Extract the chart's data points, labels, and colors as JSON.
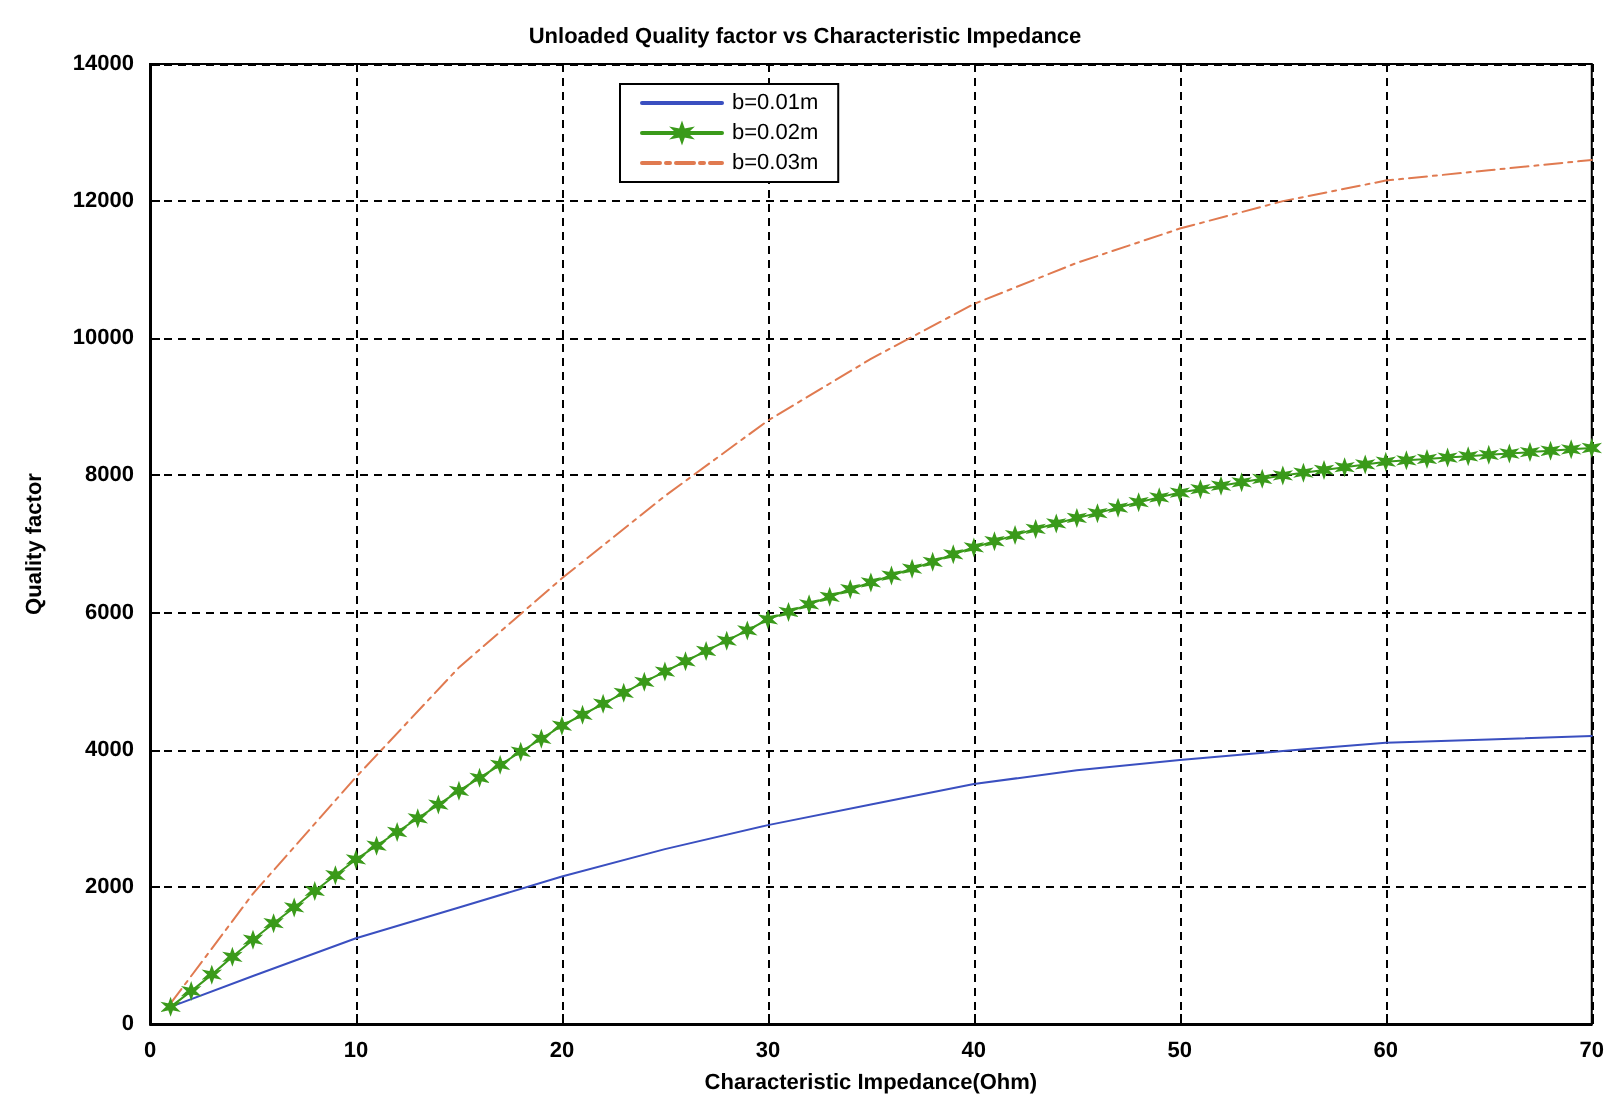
{
  "chart_data": {
    "type": "line",
    "title": "Unloaded Quality factor vs Characteristic Impedance",
    "xlabel": "Characteristic Impedance(Ohm)",
    "ylabel": "Quality factor",
    "xlim": [
      0,
      70
    ],
    "xticks": [
      0,
      10,
      20,
      30,
      40,
      50,
      60,
      70
    ],
    "ylim": [
      0,
      14000
    ],
    "yticks": [
      0,
      2000,
      4000,
      6000,
      8000,
      10000,
      12000,
      14000
    ],
    "grid": true,
    "legend": "top",
    "series": [
      {
        "name": "b=0.01m",
        "color": "#3a4fc0",
        "line_style": "solid",
        "x": [
          1,
          5,
          10,
          15,
          20,
          25,
          30,
          35,
          40,
          45,
          50,
          55,
          60,
          65,
          70
        ],
        "values": [
          250,
          700,
          1250,
          1700,
          2150,
          2550,
          2900,
          3200,
          3500,
          3700,
          3850,
          3980,
          4100,
          4150,
          4200
        ]
      },
      {
        "name": "b=0.02m",
        "color": "#3a9a1a",
        "line_style": "solid",
        "marker": "cross",
        "x": [
          1,
          2,
          3,
          4,
          5,
          6,
          7,
          8,
          9,
          10,
          11,
          12,
          13,
          14,
          15,
          16,
          17,
          18,
          19,
          20,
          21,
          22,
          23,
          24,
          25,
          26,
          27,
          28,
          29,
          30,
          31,
          32,
          33,
          34,
          35,
          36,
          37,
          38,
          39,
          40,
          41,
          42,
          43,
          44,
          45,
          46,
          47,
          48,
          49,
          50,
          51,
          52,
          53,
          54,
          55,
          56,
          57,
          58,
          59,
          60,
          61,
          62,
          63,
          64,
          65,
          66,
          67,
          68,
          69,
          70
        ],
        "values": [
          250,
          480,
          720,
          980,
          1230,
          1470,
          1700,
          1940,
          2170,
          2400,
          2600,
          2800,
          3000,
          3200,
          3400,
          3590,
          3780,
          3970,
          4160,
          4350,
          4510,
          4670,
          4830,
          4990,
          5140,
          5290,
          5440,
          5590,
          5740,
          5900,
          6010,
          6120,
          6230,
          6340,
          6440,
          6540,
          6640,
          6740,
          6850,
          6950,
          7040,
          7130,
          7220,
          7300,
          7380,
          7450,
          7530,
          7610,
          7680,
          7750,
          7800,
          7850,
          7900,
          7950,
          8000,
          8040,
          8080,
          8120,
          8160,
          8200,
          8220,
          8240,
          8260,
          8280,
          8300,
          8320,
          8340,
          8360,
          8380,
          8400
        ]
      },
      {
        "name": "b=0.03m",
        "color": "#e07a50",
        "line_style": "dashed",
        "x": [
          1,
          5,
          10,
          15,
          20,
          25,
          30,
          35,
          40,
          45,
          50,
          55,
          60,
          65,
          70
        ],
        "values": [
          300,
          1900,
          3600,
          5200,
          6500,
          7700,
          8800,
          9700,
          10500,
          11100,
          11600,
          12000,
          12300,
          12450,
          12600
        ]
      }
    ]
  }
}
